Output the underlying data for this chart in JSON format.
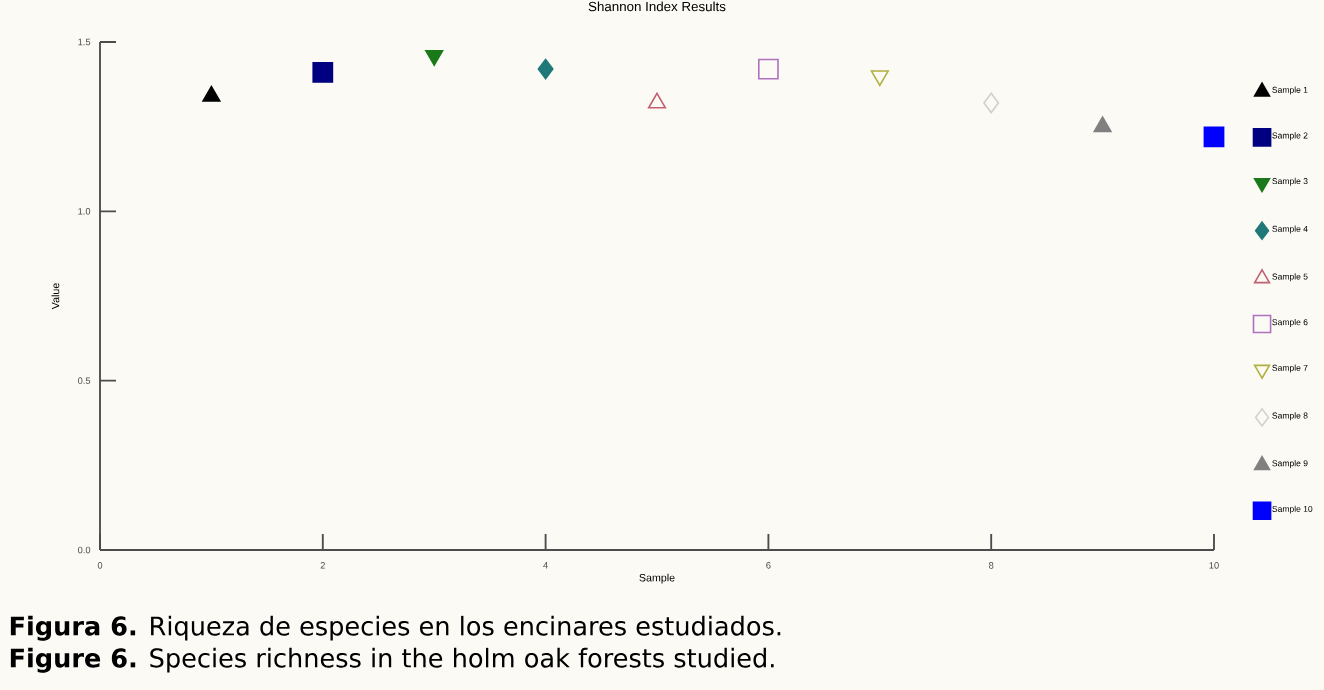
{
  "chart_data": {
    "type": "scatter",
    "title": "Shannon Index Results",
    "xlabel": "Sample",
    "ylabel": "Value",
    "xlim": [
      0,
      10
    ],
    "xticks": [
      0,
      2,
      4,
      6,
      8,
      10
    ],
    "ylim": [
      0,
      1.5
    ],
    "yticks": [
      {
        "value": 0,
        "label": "0.0"
      },
      {
        "value": 0.5,
        "label": "0.5"
      },
      {
        "value": 1,
        "label": "1.0"
      },
      {
        "value": 1.5,
        "label": "1.5"
      }
    ],
    "legend": "right",
    "grid": false,
    "series": [
      {
        "name": "Sample 1",
        "color": "#000000",
        "marker": "triangle",
        "x": [
          1
        ],
        "values": [
          1.34
        ]
      },
      {
        "name": "Sample 2",
        "color": "#000080",
        "marker": "square",
        "x": [
          2
        ],
        "values": [
          1.41
        ]
      },
      {
        "name": "Sample 3",
        "color": "#1a7a1a",
        "marker": "triangle-down",
        "x": [
          3
        ],
        "values": [
          1.46
        ]
      },
      {
        "name": "Sample 4",
        "color": "#207878",
        "marker": "diamond",
        "x": [
          4
        ],
        "values": [
          1.42
        ]
      },
      {
        "name": "Sample 5",
        "color": "#c06070",
        "marker": "triangle-open",
        "x": [
          5
        ],
        "values": [
          1.32
        ]
      },
      {
        "name": "Sample 6",
        "color": "#b070c0",
        "marker": "square-open",
        "x": [
          6
        ],
        "values": [
          1.42
        ]
      },
      {
        "name": "Sample 7",
        "color": "#b0b040",
        "marker": "triangle-down-open",
        "x": [
          7
        ],
        "values": [
          1.4
        ]
      },
      {
        "name": "Sample 8",
        "color": "#d0d0d0",
        "marker": "diamond-open",
        "x": [
          8
        ],
        "values": [
          1.32
        ]
      },
      {
        "name": "Sample 9",
        "color": "#808080",
        "marker": "triangle",
        "x": [
          9
        ],
        "values": [
          1.25
        ]
      },
      {
        "name": "Sample 10",
        "color": "#0000ff",
        "marker": "square",
        "x": [
          10
        ],
        "values": [
          1.22
        ]
      }
    ],
    "annotations": [
      "**Figura 6.** Riqueza de especies en los encinares estudiados.",
      "**Figure 6.** Species richness in the holm oak forests studied."
    ]
  }
}
